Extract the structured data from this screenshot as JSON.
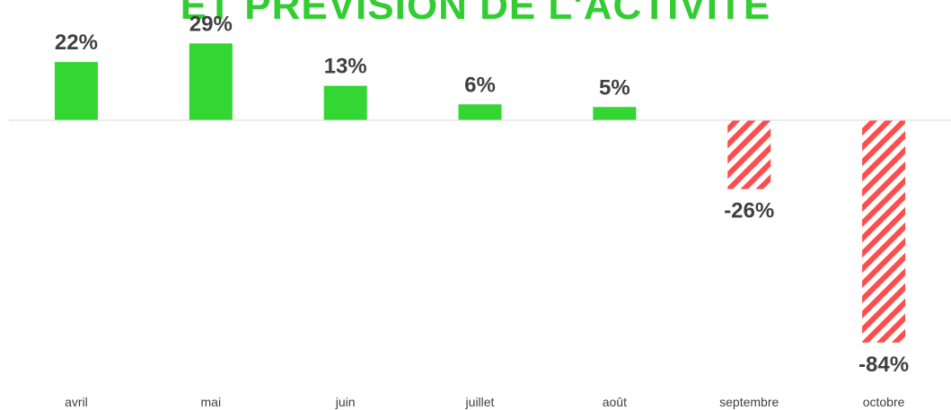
{
  "chart_data": {
    "type": "bar",
    "title": "ET PRÉVISION DE L'ACTIVITÉ",
    "categories": [
      "avril",
      "mai",
      "juin",
      "juillet",
      "août",
      "septembre",
      "octobre"
    ],
    "values": [
      22,
      29,
      13,
      6,
      5,
      -26,
      -84
    ],
    "value_labels": [
      "22%",
      "29%",
      "13%",
      "6%",
      "5%",
      "-26%",
      "-84%"
    ],
    "unit": "%",
    "ylim": [
      -100,
      40
    ],
    "grid": false,
    "legend": "none",
    "colors": {
      "positive": "#33d633",
      "negative_stripe": "#ff4d4d",
      "title": "#33cc33",
      "label": "#404040",
      "axis": "#d9d9d9"
    }
  }
}
